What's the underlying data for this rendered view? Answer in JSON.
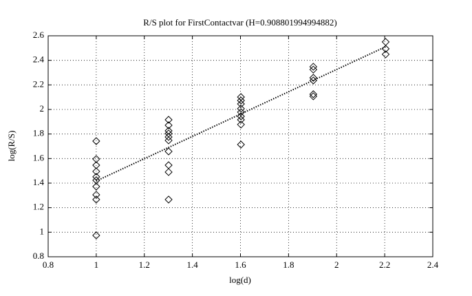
{
  "chart_data": {
    "type": "scatter",
    "title": "R/S plot for FirstContactvar (H=0.908801994994882)",
    "xlabel": "log(d)",
    "ylabel": "log(R/S)",
    "x": [
      1,
      1,
      1,
      1,
      1,
      1,
      1,
      1,
      1,
      1,
      1.301,
      1.301,
      1.301,
      1.301,
      1.301,
      1.301,
      1.301,
      1.301,
      1.301,
      1.301,
      1.602,
      1.602,
      1.602,
      1.602,
      1.602,
      1.602,
      1.602,
      1.602,
      1.602,
      1.903,
      1.903,
      1.903,
      1.903,
      1.903,
      1.903,
      2.204,
      2.204,
      2.204
    ],
    "y": [
      1.742,
      1.596,
      1.546,
      1.495,
      1.451,
      1.423,
      1.372,
      1.305,
      1.266,
      0.974,
      1.916,
      1.871,
      1.826,
      1.804,
      1.776,
      1.748,
      1.658,
      1.546,
      1.49,
      1.266,
      2.101,
      2.073,
      2.045,
      2.006,
      1.978,
      1.944,
      1.916,
      1.877,
      1.714,
      2.348,
      2.325,
      2.258,
      2.236,
      2.124,
      2.107,
      2.55,
      2.494,
      2.449
    ],
    "fit": {
      "x": [
        1,
        2.204
      ],
      "y": [
        1.417,
        2.511
      ]
    },
    "color": "#000000",
    "xlim": [
      0.8,
      2.4
    ],
    "ylim": [
      0.8,
      2.6
    ],
    "xticks": [
      0.8,
      1,
      1.2,
      1.4,
      1.6,
      1.8,
      2,
      2.2,
      2.4
    ],
    "yticks": [
      0.8,
      1,
      1.2,
      1.4,
      1.6,
      1.8,
      2,
      2.2,
      2.4,
      2.6
    ],
    "grid": true
  }
}
